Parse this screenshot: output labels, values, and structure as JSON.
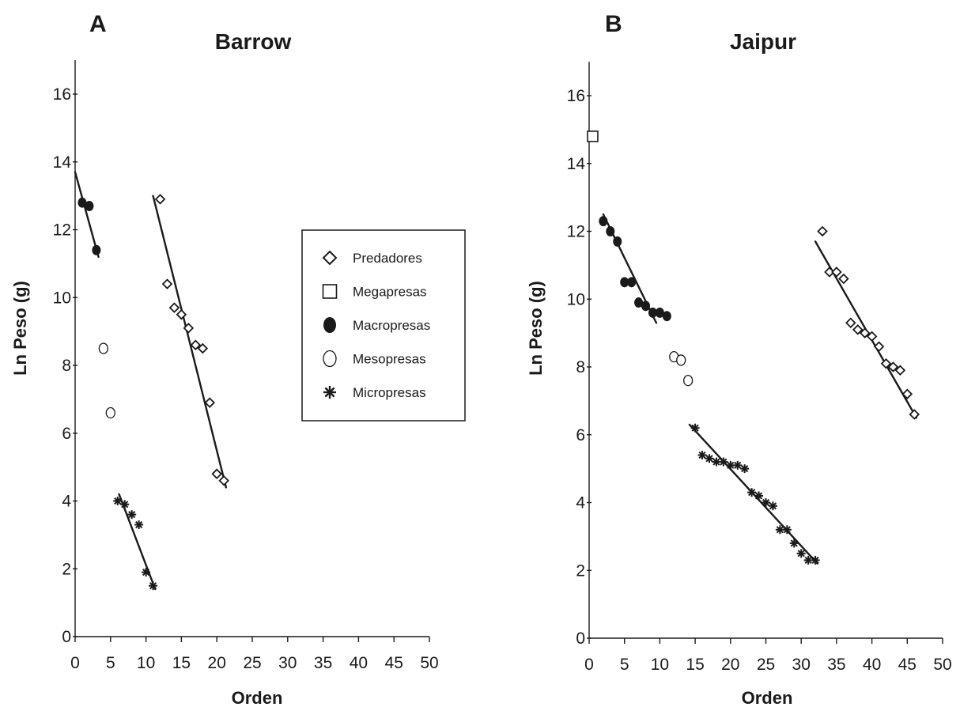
{
  "chart_data": [
    {
      "type": "scatter",
      "panel": "A",
      "title": "Barrow",
      "xlabel": "Orden",
      "ylabel": "Ln Peso (g)",
      "xlim": [
        0,
        50
      ],
      "ylim": [
        0,
        17
      ],
      "xticks": [
        0,
        5,
        10,
        15,
        20,
        25,
        30,
        35,
        40,
        45,
        50
      ],
      "yticks": [
        0,
        2,
        4,
        6,
        8,
        10,
        12,
        14,
        16
      ],
      "grid": false,
      "legend": {
        "position": "center-right",
        "entries": [
          {
            "name": "Predadores",
            "marker": "diamond"
          },
          {
            "name": "Megapresas",
            "marker": "square"
          },
          {
            "name": "Macropresas",
            "marker": "filled-circle"
          },
          {
            "name": "Mesopresas",
            "marker": "open-circle"
          },
          {
            "name": "Micropresas",
            "marker": "asterisk"
          }
        ]
      },
      "series": [
        {
          "group": "Macropresas",
          "marker": "filled-circle",
          "x": [
            1,
            2,
            3
          ],
          "y": [
            12.8,
            12.7,
            11.4
          ],
          "trend": {
            "x": [
              0,
              3.3
            ],
            "y": [
              13.7,
              11.2
            ]
          }
        },
        {
          "group": "Mesopresas",
          "marker": "open-circle",
          "x": [
            4,
            5
          ],
          "y": [
            8.5,
            6.6
          ]
        },
        {
          "group": "Micropresas",
          "marker": "asterisk",
          "x": [
            6,
            7,
            8,
            9,
            10,
            11
          ],
          "y": [
            4.0,
            3.9,
            3.6,
            3.3,
            1.9,
            1.5
          ],
          "trend": {
            "x": [
              6.2,
              11.3
            ],
            "y": [
              4.2,
              1.4
            ]
          }
        },
        {
          "group": "Predadores",
          "marker": "diamond",
          "x": [
            12,
            13,
            14,
            15,
            16,
            17,
            18,
            19,
            20,
            21
          ],
          "y": [
            12.9,
            10.4,
            9.7,
            9.5,
            9.1,
            8.6,
            8.5,
            6.9,
            4.8,
            4.6
          ],
          "trend": {
            "x": [
              11,
              21.3
            ],
            "y": [
              13.0,
              4.4
            ]
          }
        }
      ]
    },
    {
      "type": "scatter",
      "panel": "B",
      "title": "Jaipur",
      "xlabel": "Orden",
      "ylabel": "Ln Peso (g)",
      "xlim": [
        0,
        50
      ],
      "ylim": [
        0,
        17
      ],
      "xticks": [
        0,
        5,
        10,
        15,
        20,
        25,
        30,
        35,
        40,
        45,
        50
      ],
      "yticks": [
        0,
        2,
        4,
        6,
        8,
        10,
        12,
        14,
        16
      ],
      "grid": false,
      "series": [
        {
          "group": "Megapresas",
          "marker": "square",
          "x": [
            0.5
          ],
          "y": [
            14.8
          ]
        },
        {
          "group": "Macropresas",
          "marker": "filled-circle",
          "x": [
            2,
            3,
            4,
            5,
            6,
            7,
            8,
            9,
            10,
            11
          ],
          "y": [
            12.3,
            12.0,
            11.7,
            10.5,
            10.5,
            9.9,
            9.8,
            9.6,
            9.6,
            9.5
          ],
          "trend": {
            "x": [
              2,
              9.5
            ],
            "y": [
              12.5,
              9.3
            ]
          }
        },
        {
          "group": "Mesopresas",
          "marker": "open-circle",
          "x": [
            12,
            13,
            14
          ],
          "y": [
            8.3,
            8.2,
            7.6
          ]
        },
        {
          "group": "Micropresas",
          "marker": "asterisk",
          "x": [
            15,
            16,
            17,
            18,
            19,
            20,
            21,
            22,
            23,
            24,
            25,
            26,
            27,
            28,
            29,
            30,
            31,
            32
          ],
          "y": [
            6.2,
            5.4,
            5.3,
            5.2,
            5.2,
            5.1,
            5.1,
            5.0,
            4.3,
            4.2,
            4.0,
            3.9,
            3.2,
            3.2,
            2.8,
            2.5,
            2.3,
            2.3
          ],
          "trend": {
            "x": [
              14.2,
              32.3
            ],
            "y": [
              6.3,
              2.2
            ]
          }
        },
        {
          "group": "Predadores",
          "marker": "diamond",
          "x": [
            33,
            34,
            35,
            36,
            37,
            38,
            39,
            40,
            41,
            42,
            43,
            44,
            45,
            46
          ],
          "y": [
            12.0,
            10.8,
            10.8,
            10.6,
            9.3,
            9.1,
            9.0,
            8.9,
            8.6,
            8.1,
            8.0,
            7.9,
            7.2,
            6.6
          ],
          "trend": {
            "x": [
              32,
              46.3
            ],
            "y": [
              11.7,
              6.5
            ]
          }
        }
      ]
    }
  ]
}
